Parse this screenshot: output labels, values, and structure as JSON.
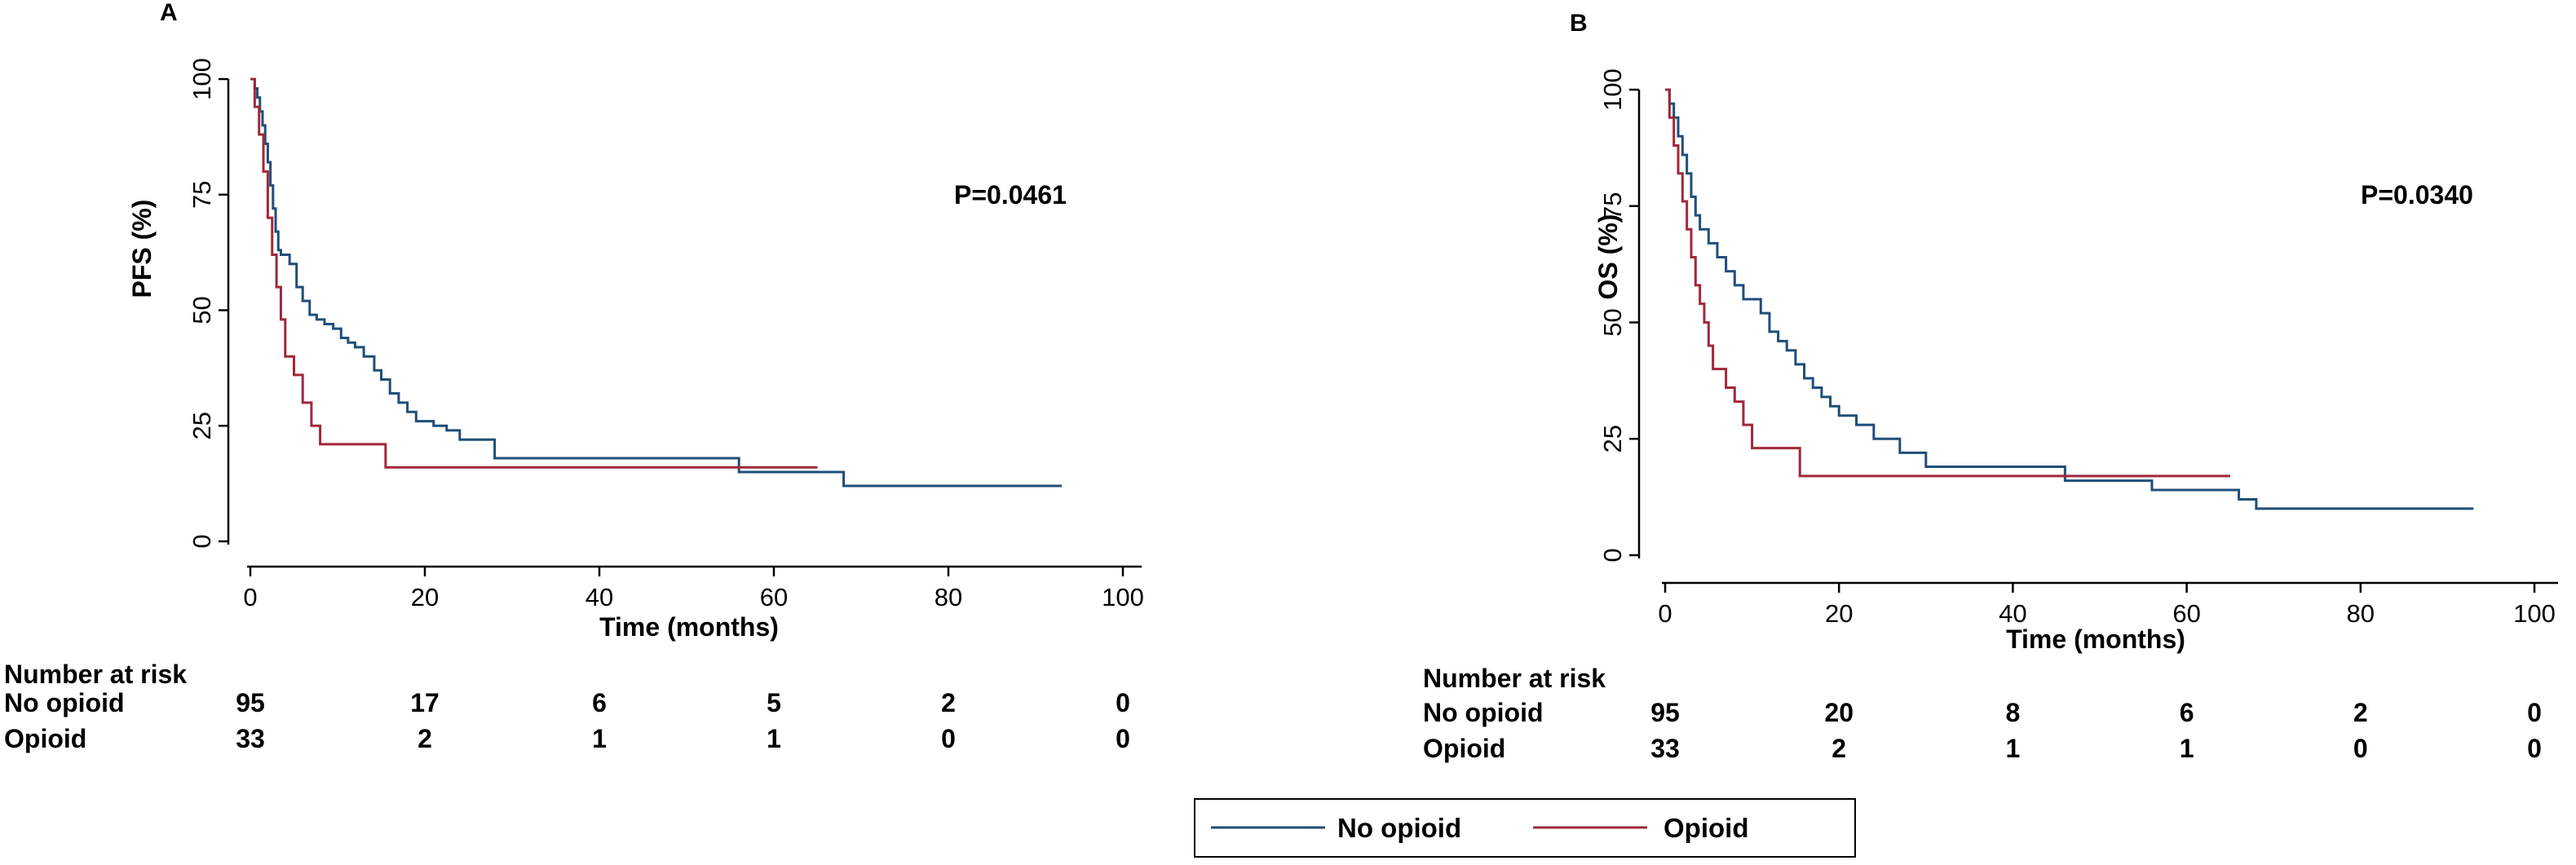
{
  "legend": {
    "entries": [
      {
        "name": "No opioid",
        "color": "#1F4E79"
      },
      {
        "name": "Opioid",
        "color": "#A0283A"
      }
    ]
  },
  "chart_data": [
    {
      "type": "line",
      "step": true,
      "panel_label": "A",
      "title": "",
      "xlabel": "Time (months)",
      "ylabel": "PFS (%)",
      "xlim": [
        0,
        100
      ],
      "ylim": [
        0,
        100
      ],
      "x_ticks": [
        0,
        20,
        40,
        60,
        80,
        100
      ],
      "y_ticks": [
        0,
        25,
        50,
        75,
        100
      ],
      "annotation": "P=0.0461",
      "series": [
        {
          "name": "No opioid",
          "color": "#1F4E79",
          "x": [
            0,
            0.5,
            0.8,
            1.1,
            1.4,
            1.7,
            2.0,
            2.3,
            2.6,
            2.9,
            3.2,
            3.5,
            3.8,
            4.5,
            5.3,
            6.0,
            6.8,
            7.6,
            8.5,
            9.5,
            10.4,
            11.2,
            12.0,
            13.0,
            14.2,
            15.0,
            16.0,
            17.0,
            18.0,
            19.0,
            20.0,
            21.0,
            22.5,
            24.0,
            28.0,
            56.0,
            68.0,
            93.0
          ],
          "y": [
            100,
            98,
            96,
            93,
            90,
            86,
            82,
            77,
            72,
            67,
            63,
            62,
            62,
            60,
            55,
            52,
            49,
            48,
            47,
            46,
            44,
            43,
            42,
            40,
            37,
            35,
            32,
            30,
            28,
            26,
            26,
            25,
            24,
            22,
            18,
            15,
            12,
            12
          ]
        },
        {
          "name": "Opioid",
          "color": "#A0283A",
          "x": [
            0,
            0.5,
            1.0,
            1.5,
            2.0,
            2.5,
            3.0,
            3.5,
            4.0,
            5.0,
            6.0,
            7.0,
            8.0,
            15.5,
            65.0
          ],
          "y": [
            100,
            94,
            88,
            80,
            70,
            62,
            55,
            48,
            40,
            36,
            30,
            25,
            21,
            16,
            16
          ]
        }
      ],
      "risk_table": {
        "title": "Number at risk",
        "times": [
          0,
          20,
          40,
          60,
          80,
          100
        ],
        "rows": [
          {
            "label": "No opioid",
            "values": [
              "95",
              "17",
              "6",
              "5",
              "2",
              "0"
            ]
          },
          {
            "label": "Opioid",
            "values": [
              "33",
              "2",
              "1",
              "1",
              "0",
              "0"
            ]
          }
        ]
      }
    },
    {
      "type": "line",
      "step": true,
      "panel_label": "B",
      "title": "",
      "xlabel": "Time (months)",
      "ylabel": "OS (%)",
      "xlim": [
        0,
        100
      ],
      "ylim": [
        0,
        100
      ],
      "x_ticks": [
        0,
        20,
        40,
        60,
        80,
        100
      ],
      "y_ticks": [
        0,
        25,
        50,
        75,
        100
      ],
      "annotation": "P=0.0340",
      "series": [
        {
          "name": "No opioid",
          "color": "#1F4E79",
          "x": [
            0,
            0.5,
            1.0,
            1.5,
            2.0,
            2.5,
            3.0,
            3.5,
            4.0,
            5.0,
            6.0,
            7.0,
            8.0,
            9.0,
            10.0,
            11.0,
            12.0,
            13.0,
            14.0,
            15.0,
            16.0,
            17.0,
            18.0,
            19.0,
            20.0,
            22.0,
            24.0,
            27.0,
            30.0,
            46.0,
            56.0,
            66.0,
            68.0,
            93.0
          ],
          "y": [
            100,
            97,
            94,
            90,
            86,
            82,
            77,
            73,
            70,
            67,
            64,
            61,
            58,
            55,
            55,
            52,
            48,
            46,
            44,
            41,
            38,
            36,
            34,
            32,
            30,
            28,
            25,
            22,
            19,
            16,
            14,
            12,
            10,
            10
          ]
        },
        {
          "name": "Opioid",
          "color": "#A0283A",
          "x": [
            0,
            0.5,
            1.0,
            1.5,
            2.0,
            2.5,
            3.0,
            3.5,
            4.0,
            4.5,
            5.0,
            5.5,
            7.0,
            8.0,
            9.0,
            10.0,
            15.5,
            65.0
          ],
          "y": [
            100,
            94,
            88,
            82,
            76,
            70,
            64,
            58,
            54,
            50,
            45,
            40,
            36,
            33,
            28,
            23,
            17,
            17
          ]
        }
      ],
      "risk_table": {
        "title": "Number at risk",
        "times": [
          0,
          20,
          40,
          60,
          80,
          100
        ],
        "rows": [
          {
            "label": "No opioid",
            "values": [
              "95",
              "20",
              "8",
              "6",
              "2",
              "0"
            ]
          },
          {
            "label": "Opioid",
            "values": [
              "33",
              "2",
              "1",
              "1",
              "0",
              "0"
            ]
          }
        ]
      }
    }
  ]
}
